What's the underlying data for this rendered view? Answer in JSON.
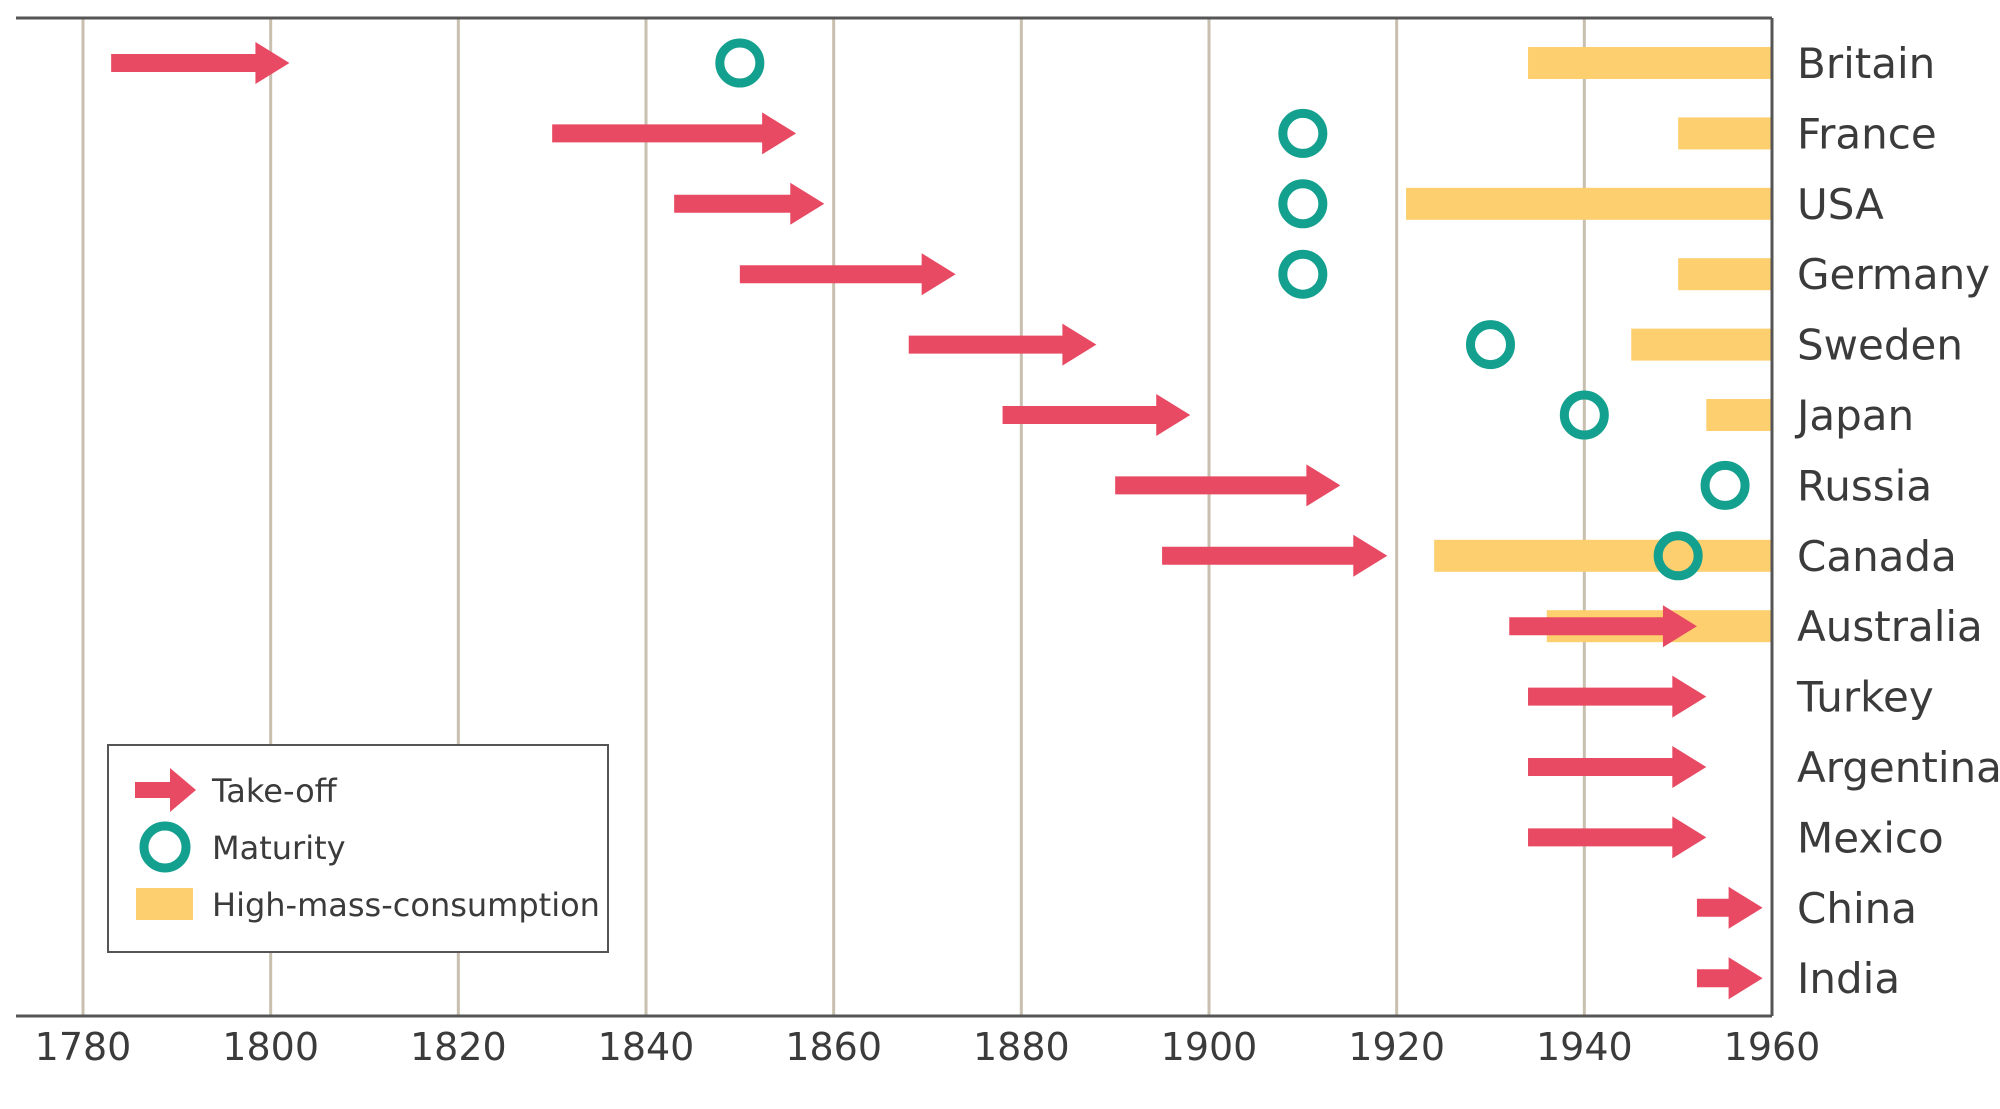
{
  "chart_data": {
    "type": "timeline",
    "title": "",
    "xlabel": "",
    "ylabel": "",
    "xlim": [
      1770,
      1960
    ],
    "x_ticks": [
      1780,
      1800,
      1820,
      1840,
      1860,
      1880,
      1900,
      1920,
      1940,
      1960
    ],
    "x_tick_labels": [
      "1780",
      "1800",
      "1820",
      "1840",
      "1860",
      "1880",
      "1900",
      "1920",
      "1940",
      "1960"
    ],
    "grid": "vertical",
    "legend_position": "bottom-left",
    "legend": {
      "takeoff": "Take-off",
      "maturity": "Maturity",
      "consumption": "High-mass-consumption"
    },
    "colors": {
      "takeoff": "#e84a63",
      "maturity": "#14a08f",
      "consumption": "#fdcf6e",
      "grid": "#c9bfae",
      "axis": "#555555",
      "text": "#3b3b3b"
    },
    "countries": [
      {
        "name": "Britain",
        "takeoff": [
          1783,
          1802
        ],
        "maturity": 1850,
        "consumption": [
          1934,
          1960
        ]
      },
      {
        "name": "France",
        "takeoff": [
          1830,
          1856
        ],
        "maturity": 1910,
        "consumption": [
          1950,
          1960
        ]
      },
      {
        "name": "USA",
        "takeoff": [
          1843,
          1859
        ],
        "maturity": 1910,
        "consumption": [
          1921,
          1960
        ]
      },
      {
        "name": "Germany",
        "takeoff": [
          1850,
          1873
        ],
        "maturity": 1910,
        "consumption": [
          1950,
          1960
        ]
      },
      {
        "name": "Sweden",
        "takeoff": [
          1868,
          1888
        ],
        "maturity": 1930,
        "consumption": [
          1945,
          1960
        ]
      },
      {
        "name": "Japan",
        "takeoff": [
          1878,
          1898
        ],
        "maturity": 1940,
        "consumption": [
          1953,
          1960
        ]
      },
      {
        "name": "Russia",
        "takeoff": [
          1890,
          1914
        ],
        "maturity": 1955,
        "consumption": null
      },
      {
        "name": "Canada",
        "takeoff": [
          1895,
          1919
        ],
        "maturity": 1950,
        "consumption": [
          1924,
          1960
        ]
      },
      {
        "name": "Australia",
        "takeoff": [
          1932,
          1952
        ],
        "maturity": null,
        "consumption": [
          1936,
          1960
        ]
      },
      {
        "name": "Turkey",
        "takeoff": [
          1934,
          1953
        ],
        "maturity": null,
        "consumption": null
      },
      {
        "name": "Argentina",
        "takeoff": [
          1934,
          1953
        ],
        "maturity": null,
        "consumption": null
      },
      {
        "name": "Mexico",
        "takeoff": [
          1934,
          1953
        ],
        "maturity": null,
        "consumption": null
      },
      {
        "name": "China",
        "takeoff": [
          1952,
          1959
        ],
        "maturity": null,
        "consumption": null
      },
      {
        "name": "India",
        "takeoff": [
          1952,
          1959
        ],
        "maturity": null,
        "consumption": null
      }
    ]
  }
}
